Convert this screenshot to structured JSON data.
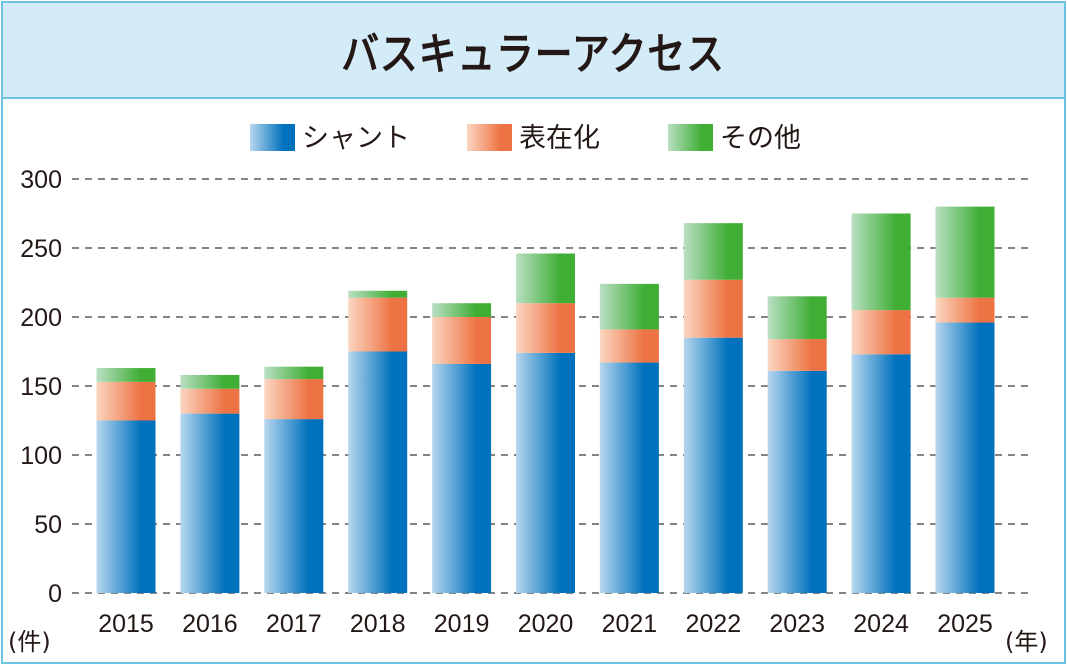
{
  "chart_data": {
    "type": "bar",
    "stacked": true,
    "title": "バスキュラーアクセス",
    "categories": [
      "2015",
      "2016",
      "2017",
      "2018",
      "2019",
      "2020",
      "2021",
      "2022",
      "2023",
      "2024",
      "2025"
    ],
    "series": [
      {
        "name": "シャント",
        "color": "#0071bc",
        "color_light": "#b7d7ef",
        "values": [
          125,
          130,
          126,
          175,
          166,
          174,
          167,
          185,
          161,
          173,
          196
        ]
      },
      {
        "name": "表在化",
        "color": "#ed7344",
        "color_light": "#fbd6c0",
        "values": [
          28,
          18,
          29,
          39,
          34,
          36,
          24,
          42,
          23,
          32,
          18
        ]
      },
      {
        "name": "その他",
        "color": "#40ad35",
        "color_light": "#b9e0c4",
        "values": [
          10,
          10,
          9,
          5,
          10,
          36,
          33,
          41,
          31,
          70,
          66
        ]
      }
    ],
    "yticks": [
      0,
      50,
      100,
      150,
      200,
      250,
      300
    ],
    "ylim": [
      0,
      300
    ],
    "ylabel": "(件)",
    "xlabel": "(年)",
    "grid": true,
    "grid_style": "dashed",
    "legend_position": "top-center"
  },
  "colors": {
    "border": "#6cc3e3",
    "title_background": "#d3ecf8",
    "text": "#231815",
    "grid": "#3a3a3a"
  }
}
